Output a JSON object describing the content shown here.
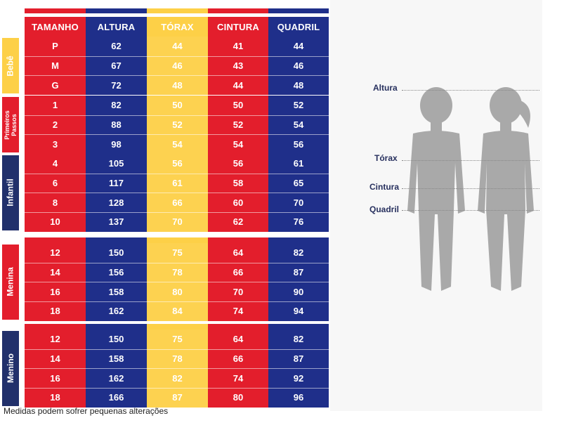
{
  "table": {
    "headers": [
      "TAMANHO",
      "ALTURA",
      "TÓRAX",
      "CINTURA",
      "QUADRIL"
    ],
    "groups": [
      {
        "label": "Bebê",
        "rows": [
          [
            "P",
            "62",
            "44",
            "41",
            "44"
          ],
          [
            "M",
            "67",
            "46",
            "43",
            "46"
          ],
          [
            "G",
            "72",
            "48",
            "44",
            "48"
          ]
        ]
      },
      {
        "label": "Primeiros Passos",
        "rows": [
          [
            "1",
            "82",
            "50",
            "50",
            "52"
          ],
          [
            "2",
            "88",
            "52",
            "52",
            "54"
          ],
          [
            "3",
            "98",
            "54",
            "54",
            "56"
          ]
        ]
      },
      {
        "label": "Infantil",
        "rows": [
          [
            "4",
            "105",
            "56",
            "56",
            "61"
          ],
          [
            "6",
            "117",
            "61",
            "58",
            "65"
          ],
          [
            "8",
            "128",
            "66",
            "60",
            "70"
          ],
          [
            "10",
            "137",
            "70",
            "62",
            "76"
          ]
        ]
      },
      {
        "label": "Menina",
        "rows": [
          [
            "12",
            "150",
            "75",
            "64",
            "82"
          ],
          [
            "14",
            "156",
            "78",
            "66",
            "87"
          ],
          [
            "16",
            "158",
            "80",
            "70",
            "90"
          ],
          [
            "18",
            "162",
            "84",
            "74",
            "94"
          ]
        ]
      },
      {
        "label": "Menino",
        "rows": [
          [
            "12",
            "150",
            "75",
            "64",
            "82"
          ],
          [
            "14",
            "158",
            "78",
            "66",
            "87"
          ],
          [
            "16",
            "162",
            "82",
            "74",
            "92"
          ],
          [
            "18",
            "166",
            "87",
            "80",
            "96"
          ]
        ]
      }
    ]
  },
  "diagram": {
    "labels": [
      "Altura",
      "Tórax",
      "Cintura",
      "Quadril"
    ]
  },
  "footnote": "Medidas podem sofrer pequenas alterações",
  "colors": {
    "red": "#e31e2c",
    "blue": "#1f2f8a",
    "yellow": "#fdd047",
    "navy": "#21306b",
    "silhouette": "#a9a9a9"
  }
}
